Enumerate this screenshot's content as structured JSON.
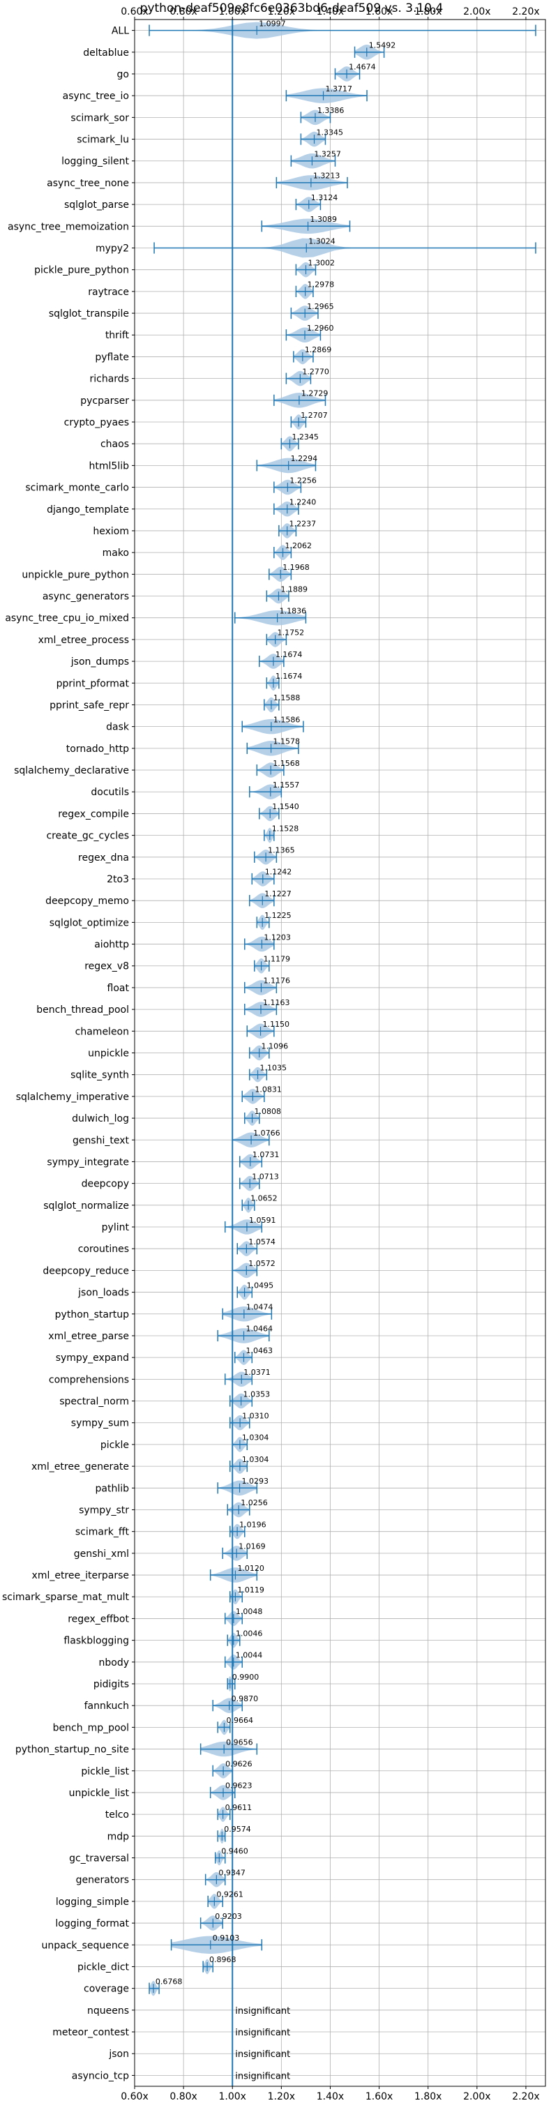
{
  "chart_data": {
    "type": "violin",
    "title": "python-deaf509e8fc6e0363bd6-deaf509 vs. 3.10.4",
    "xlabel": "",
    "ylabel": "",
    "xlim": [
      0.6,
      2.28
    ],
    "x_ticks": [
      0.6,
      0.8,
      1.0,
      1.2,
      1.4,
      1.6,
      1.8,
      2.0,
      2.2
    ],
    "x_tick_labels": [
      "0.60x",
      "0.80x",
      "1.00x",
      "1.20x",
      "1.40x",
      "1.60x",
      "1.80x",
      "2.00x",
      "2.20x"
    ],
    "reference_line": 1.0,
    "grid": true,
    "colors": {
      "violin": "#a9c8e4",
      "line": "#1f77b4",
      "grid": "#b0b0b0"
    },
    "insignificant_label": "insignificant",
    "benchmarks": [
      {
        "name": "ALL",
        "value": 1.0997,
        "label": "1.0997",
        "min": 0.66,
        "max": 2.24,
        "spread": 0.1,
        "h": 0.8
      },
      {
        "name": "deltablue",
        "value": 1.5492,
        "label": "1.5492",
        "min": 1.5,
        "max": 1.62
      },
      {
        "name": "go",
        "value": 1.4674,
        "label": "1.4674",
        "min": 1.42,
        "max": 1.52
      },
      {
        "name": "async_tree_io",
        "value": 1.3717,
        "label": "1.3717",
        "min": 1.22,
        "max": 1.55
      },
      {
        "name": "scimark_sor",
        "value": 1.3386,
        "label": "1.3386",
        "min": 1.28,
        "max": 1.4
      },
      {
        "name": "scimark_lu",
        "value": 1.3345,
        "label": "1.3345",
        "min": 1.28,
        "max": 1.38
      },
      {
        "name": "logging_silent",
        "value": 1.3257,
        "label": "1.3257",
        "min": 1.24,
        "max": 1.42
      },
      {
        "name": "async_tree_none",
        "value": 1.3213,
        "label": "1.3213",
        "min": 1.18,
        "max": 1.47
      },
      {
        "name": "sqlglot_parse",
        "value": 1.3124,
        "label": "1.3124",
        "min": 1.26,
        "max": 1.36
      },
      {
        "name": "async_tree_memoization",
        "value": 1.3089,
        "label": "1.3089",
        "min": 1.12,
        "max": 1.48
      },
      {
        "name": "mypy2",
        "value": 1.3024,
        "label": "1.3024",
        "min": 0.68,
        "max": 2.24,
        "spread": 0.07,
        "h": 0.95
      },
      {
        "name": "pickle_pure_python",
        "value": 1.3002,
        "label": "1.3002",
        "min": 1.26,
        "max": 1.34
      },
      {
        "name": "raytrace",
        "value": 1.2978,
        "label": "1.2978",
        "min": 1.26,
        "max": 1.33
      },
      {
        "name": "sqlglot_transpile",
        "value": 1.2965,
        "label": "1.2965",
        "min": 1.24,
        "max": 1.35
      },
      {
        "name": "thrift",
        "value": 1.296,
        "label": "1.2960",
        "min": 1.22,
        "max": 1.36
      },
      {
        "name": "pyflate",
        "value": 1.2869,
        "label": "1.2869",
        "min": 1.25,
        "max": 1.33
      },
      {
        "name": "richards",
        "value": 1.277,
        "label": "1.2770",
        "min": 1.22,
        "max": 1.32
      },
      {
        "name": "pycparser",
        "value": 1.2729,
        "label": "1.2729",
        "min": 1.17,
        "max": 1.38
      },
      {
        "name": "crypto_pyaes",
        "value": 1.2707,
        "label": "1.2707",
        "min": 1.24,
        "max": 1.3
      },
      {
        "name": "chaos",
        "value": 1.2345,
        "label": "1.2345",
        "min": 1.2,
        "max": 1.27
      },
      {
        "name": "html5lib",
        "value": 1.2294,
        "label": "1.2294",
        "min": 1.1,
        "max": 1.34
      },
      {
        "name": "scimark_monte_carlo",
        "value": 1.2256,
        "label": "1.2256",
        "min": 1.17,
        "max": 1.28
      },
      {
        "name": "django_template",
        "value": 1.224,
        "label": "1.2240",
        "min": 1.17,
        "max": 1.27
      },
      {
        "name": "hexiom",
        "value": 1.2237,
        "label": "1.2237",
        "min": 1.19,
        "max": 1.26
      },
      {
        "name": "mako",
        "value": 1.2062,
        "label": "1.2062",
        "min": 1.17,
        "max": 1.24
      },
      {
        "name": "unpickle_pure_python",
        "value": 1.1968,
        "label": "1.1968",
        "min": 1.15,
        "max": 1.24
      },
      {
        "name": "async_generators",
        "value": 1.1889,
        "label": "1.1889",
        "min": 1.14,
        "max": 1.23
      },
      {
        "name": "async_tree_cpu_io_mixed",
        "value": 1.1836,
        "label": "1.1836",
        "min": 1.01,
        "max": 1.3
      },
      {
        "name": "xml_etree_process",
        "value": 1.1752,
        "label": "1.1752",
        "min": 1.14,
        "max": 1.22
      },
      {
        "name": "json_dumps",
        "value": 1.1674,
        "label": "1.1674",
        "min": 1.11,
        "max": 1.21
      },
      {
        "name": "pprint_pformat",
        "value": 1.1674,
        "label": "1.1674",
        "min": 1.14,
        "max": 1.19
      },
      {
        "name": "pprint_safe_repr",
        "value": 1.1588,
        "label": "1.1588",
        "min": 1.13,
        "max": 1.19
      },
      {
        "name": "dask",
        "value": 1.1586,
        "label": "1.1586",
        "min": 1.04,
        "max": 1.29
      },
      {
        "name": "tornado_http",
        "value": 1.1578,
        "label": "1.1578",
        "min": 1.06,
        "max": 1.27
      },
      {
        "name": "sqlalchemy_declarative",
        "value": 1.1568,
        "label": "1.1568",
        "min": 1.1,
        "max": 1.21
      },
      {
        "name": "docutils",
        "value": 1.1557,
        "label": "1.1557",
        "min": 1.07,
        "max": 1.2
      },
      {
        "name": "regex_compile",
        "value": 1.154,
        "label": "1.1540",
        "min": 1.11,
        "max": 1.19
      },
      {
        "name": "create_gc_cycles",
        "value": 1.1528,
        "label": "1.1528",
        "min": 1.13,
        "max": 1.17
      },
      {
        "name": "regex_dna",
        "value": 1.1365,
        "label": "1.1365",
        "min": 1.09,
        "max": 1.18
      },
      {
        "name": "2to3",
        "value": 1.1242,
        "label": "1.1242",
        "min": 1.08,
        "max": 1.17
      },
      {
        "name": "deepcopy_memo",
        "value": 1.1227,
        "label": "1.1227",
        "min": 1.07,
        "max": 1.17
      },
      {
        "name": "sqlglot_optimize",
        "value": 1.1225,
        "label": "1.1225",
        "min": 1.1,
        "max": 1.15
      },
      {
        "name": "aiohttp",
        "value": 1.1203,
        "label": "1.1203",
        "min": 1.05,
        "max": 1.17
      },
      {
        "name": "regex_v8",
        "value": 1.1179,
        "label": "1.1179",
        "min": 1.09,
        "max": 1.15
      },
      {
        "name": "float",
        "value": 1.1176,
        "label": "1.1176",
        "min": 1.05,
        "max": 1.18
      },
      {
        "name": "bench_thread_pool",
        "value": 1.1163,
        "label": "1.1163",
        "min": 1.05,
        "max": 1.18
      },
      {
        "name": "chameleon",
        "value": 1.115,
        "label": "1.1150",
        "min": 1.06,
        "max": 1.17
      },
      {
        "name": "unpickle",
        "value": 1.1096,
        "label": "1.1096",
        "min": 1.07,
        "max": 1.15
      },
      {
        "name": "sqlite_synth",
        "value": 1.1035,
        "label": "1.1035",
        "min": 1.07,
        "max": 1.14
      },
      {
        "name": "sqlalchemy_imperative",
        "value": 1.0831,
        "label": "1.0831",
        "min": 1.04,
        "max": 1.13
      },
      {
        "name": "dulwich_log",
        "value": 1.0808,
        "label": "1.0808",
        "min": 1.05,
        "max": 1.11
      },
      {
        "name": "genshi_text",
        "value": 1.0766,
        "label": "1.0766",
        "min": 1.0,
        "max": 1.15
      },
      {
        "name": "sympy_integrate",
        "value": 1.0731,
        "label": "1.0731",
        "min": 1.03,
        "max": 1.12
      },
      {
        "name": "deepcopy",
        "value": 1.0713,
        "label": "1.0713",
        "min": 1.03,
        "max": 1.11
      },
      {
        "name": "sqlglot_normalize",
        "value": 1.0652,
        "label": "1.0652",
        "min": 1.04,
        "max": 1.09
      },
      {
        "name": "pylint",
        "value": 1.0591,
        "label": "1.0591",
        "min": 0.97,
        "max": 1.12
      },
      {
        "name": "coroutines",
        "value": 1.0574,
        "label": "1.0574",
        "min": 1.02,
        "max": 1.1
      },
      {
        "name": "deepcopy_reduce",
        "value": 1.0572,
        "label": "1.0572",
        "min": 1.0,
        "max": 1.1
      },
      {
        "name": "json_loads",
        "value": 1.0495,
        "label": "1.0495",
        "min": 1.02,
        "max": 1.08
      },
      {
        "name": "python_startup",
        "value": 1.0474,
        "label": "1.0474",
        "min": 0.96,
        "max": 1.16
      },
      {
        "name": "xml_etree_parse",
        "value": 1.0464,
        "label": "1.0464",
        "min": 0.94,
        "max": 1.15
      },
      {
        "name": "sympy_expand",
        "value": 1.0463,
        "label": "1.0463",
        "min": 1.01,
        "max": 1.08
      },
      {
        "name": "comprehensions",
        "value": 1.0371,
        "label": "1.0371",
        "min": 0.97,
        "max": 1.08
      },
      {
        "name": "spectral_norm",
        "value": 1.0353,
        "label": "1.0353",
        "min": 0.99,
        "max": 1.08
      },
      {
        "name": "sympy_sum",
        "value": 1.031,
        "label": "1.0310",
        "min": 0.99,
        "max": 1.07
      },
      {
        "name": "pickle",
        "value": 1.0304,
        "label": "1.0304",
        "min": 1.0,
        "max": 1.06
      },
      {
        "name": "xml_etree_generate",
        "value": 1.0304,
        "label": "1.0304",
        "min": 0.99,
        "max": 1.06
      },
      {
        "name": "pathlib",
        "value": 1.0293,
        "label": "1.0293",
        "min": 0.94,
        "max": 1.1
      },
      {
        "name": "sympy_str",
        "value": 1.0256,
        "label": "1.0256",
        "min": 0.98,
        "max": 1.07
      },
      {
        "name": "scimark_fft",
        "value": 1.0196,
        "label": "1.0196",
        "min": 0.99,
        "max": 1.05
      },
      {
        "name": "genshi_xml",
        "value": 1.0169,
        "label": "1.0169",
        "min": 0.96,
        "max": 1.06
      },
      {
        "name": "xml_etree_iterparse",
        "value": 1.012,
        "label": "1.0120",
        "min": 0.91,
        "max": 1.1
      },
      {
        "name": "scimark_sparse_mat_mult",
        "value": 1.0119,
        "label": "1.0119",
        "min": 0.99,
        "max": 1.04
      },
      {
        "name": "regex_effbot",
        "value": 1.0048,
        "label": "1.0048",
        "min": 0.97,
        "max": 1.04
      },
      {
        "name": "flaskblogging",
        "value": 1.0046,
        "label": "1.0046",
        "min": 0.98,
        "max": 1.03
      },
      {
        "name": "nbody",
        "value": 1.0044,
        "label": "1.0044",
        "min": 0.97,
        "max": 1.04
      },
      {
        "name": "pidigits",
        "value": 0.99,
        "label": "0.9900",
        "min": 0.98,
        "max": 1.01
      },
      {
        "name": "fannkuch",
        "value": 0.987,
        "label": "0.9870",
        "min": 0.92,
        "max": 1.04
      },
      {
        "name": "bench_mp_pool",
        "value": 0.9664,
        "label": "0.9664",
        "min": 0.94,
        "max": 0.99
      },
      {
        "name": "python_startup_no_site",
        "value": 0.9656,
        "label": "0.9656",
        "min": 0.87,
        "max": 1.1
      },
      {
        "name": "pickle_list",
        "value": 0.9626,
        "label": "0.9626",
        "min": 0.92,
        "max": 1.0
      },
      {
        "name": "unpickle_list",
        "value": 0.9623,
        "label": "0.9623",
        "min": 0.91,
        "max": 1.01
      },
      {
        "name": "telco",
        "value": 0.9611,
        "label": "0.9611",
        "min": 0.94,
        "max": 0.99
      },
      {
        "name": "mdp",
        "value": 0.9574,
        "label": "0.9574",
        "min": 0.94,
        "max": 0.97
      },
      {
        "name": "gc_traversal",
        "value": 0.946,
        "label": "0.9460",
        "min": 0.93,
        "max": 0.97
      },
      {
        "name": "generators",
        "value": 0.9347,
        "label": "0.9347",
        "min": 0.89,
        "max": 0.97
      },
      {
        "name": "logging_simple",
        "value": 0.9261,
        "label": "0.9261",
        "min": 0.9,
        "max": 0.96
      },
      {
        "name": "logging_format",
        "value": 0.9203,
        "label": "0.9203",
        "min": 0.87,
        "max": 0.96
      },
      {
        "name": "unpack_sequence",
        "value": 0.9103,
        "label": "0.9103",
        "min": 0.75,
        "max": 1.12,
        "spread": 0.1,
        "h": 0.85
      },
      {
        "name": "pickle_dict",
        "value": 0.8968,
        "label": "0.8968",
        "min": 0.88,
        "max": 0.92
      },
      {
        "name": "coverage",
        "value": 0.6768,
        "label": "0.6768",
        "min": 0.66,
        "max": 0.7
      },
      {
        "name": "nqueens",
        "insignificant": true
      },
      {
        "name": "meteor_contest",
        "insignificant": true
      },
      {
        "name": "json",
        "insignificant": true
      },
      {
        "name": "asyncio_tcp",
        "insignificant": true
      }
    ]
  }
}
